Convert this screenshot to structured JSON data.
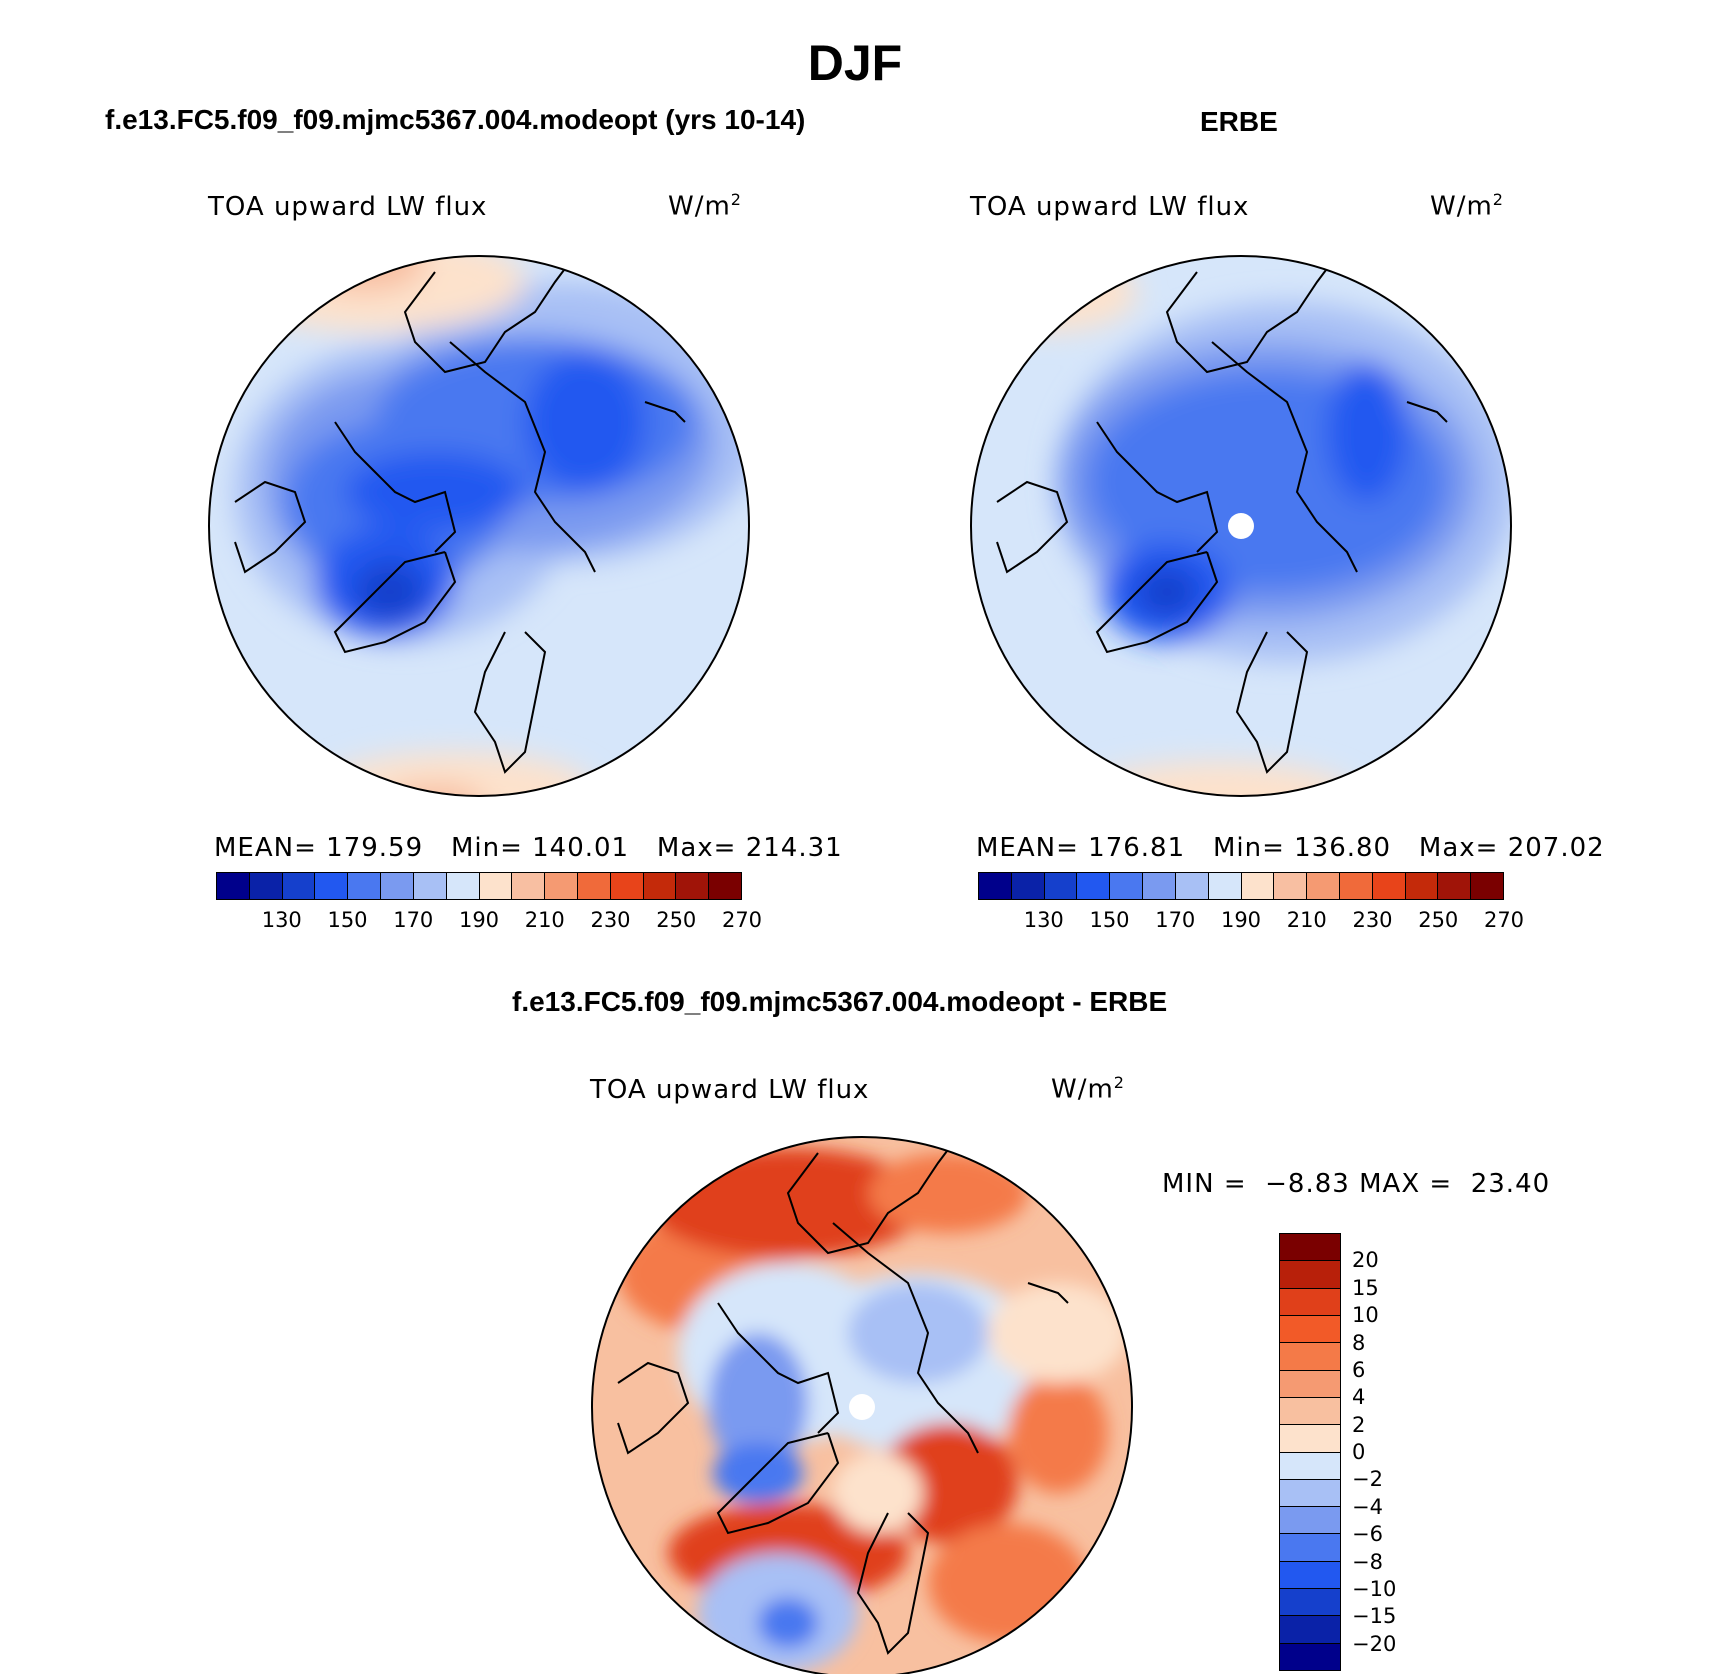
{
  "title": "DJF",
  "panels": {
    "model": {
      "title": "f.e13.FC5.f09_f09.mjmc5367.004.modeopt (yrs 10-14)",
      "variable": "TOA upward LW flux",
      "unit_base": "W/m",
      "unit_exp": "2",
      "stats": {
        "mean_label": "MEAN=",
        "mean": "179.59",
        "min_label": "Min=",
        "min": "140.01",
        "max_label": "Max=",
        "max": "214.31"
      }
    },
    "obs": {
      "title": "ERBE",
      "variable": "TOA upward LW flux",
      "unit_base": "W/m",
      "unit_exp": "2",
      "stats": {
        "mean_label": "MEAN=",
        "mean": "176.81",
        "min_label": "Min=",
        "min": "136.80",
        "max_label": "Max=",
        "max": "207.02"
      }
    },
    "diff": {
      "title": "f.e13.FC5.f09_f09.mjmc5367.004.modeopt - ERBE",
      "variable": "TOA upward LW flux",
      "unit_base": "W/m",
      "unit_exp": "2",
      "stats": {
        "min_label": "MIN =",
        "min": "−8.83",
        "max_label": "MAX =",
        "max": "23.40"
      }
    }
  },
  "colorbar_main": {
    "labels": [
      "130",
      "150",
      "170",
      "190",
      "210",
      "230",
      "250",
      "270"
    ],
    "colors": [
      "#00008b",
      "#0a22a8",
      "#1540cc",
      "#2258f0",
      "#4a78f0",
      "#7a9af0",
      "#a8c0f5",
      "#d6e6fa",
      "#fde2cc",
      "#f8bfa2",
      "#f59a72",
      "#f06a3a",
      "#e8441a",
      "#c42a0a",
      "#a01408",
      "#7a0000"
    ]
  },
  "colorbar_diff": {
    "labels": [
      "20",
      "15",
      "10",
      "8",
      "6",
      "4",
      "2",
      "0",
      "−2",
      "−4",
      "−6",
      "−8",
      "−10",
      "−15",
      "−20"
    ],
    "colors": [
      "#7a0000",
      "#b8200a",
      "#e0401a",
      "#f25a28",
      "#f47a48",
      "#f59a72",
      "#f8c0a0",
      "#fde2cc",
      "#d6e6fa",
      "#a8c0f5",
      "#7a9af0",
      "#4a78f0",
      "#2258f0",
      "#1540cc",
      "#0a22a8",
      "#00008b"
    ]
  }
}
